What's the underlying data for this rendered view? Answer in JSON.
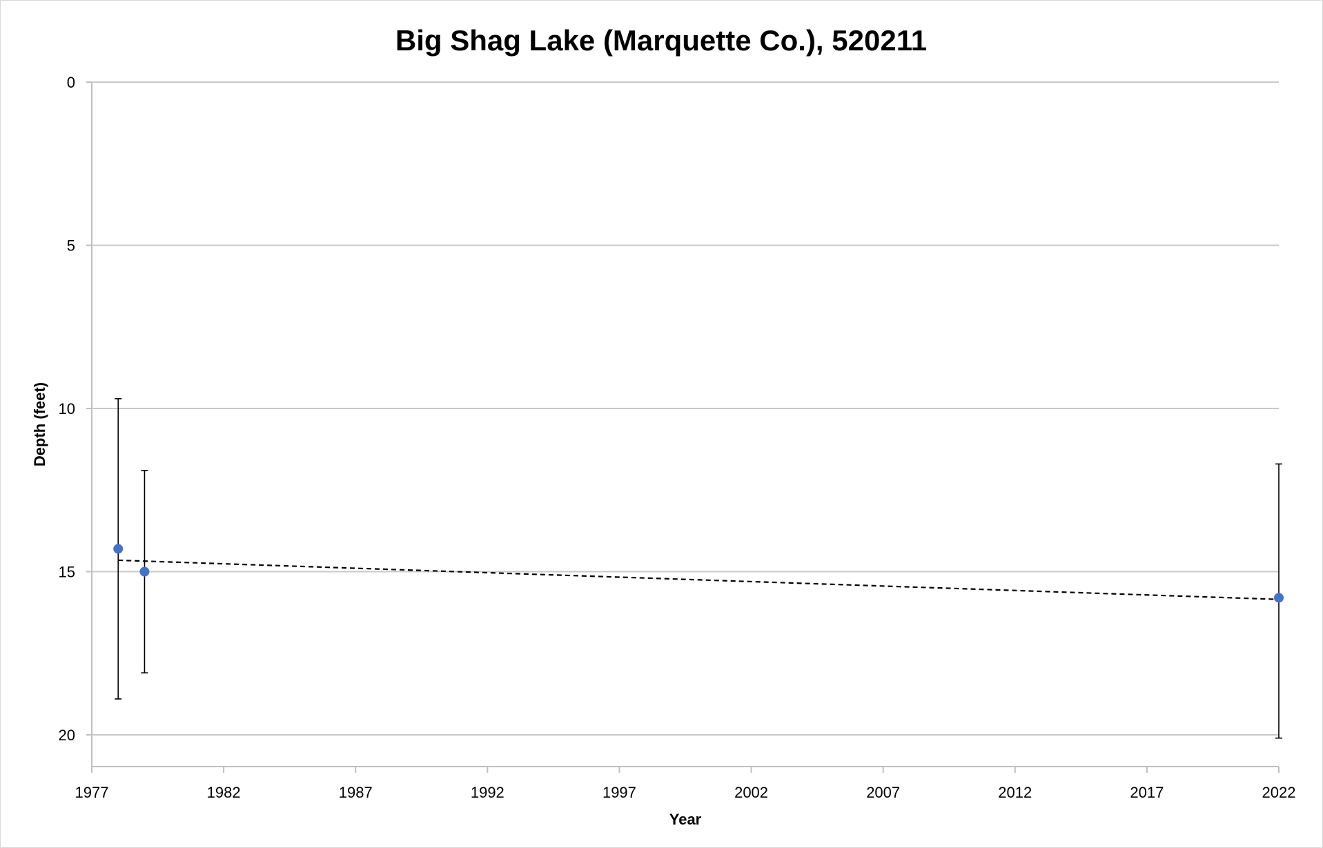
{
  "chart_data": {
    "type": "scatter",
    "title": "Big Shag Lake (Marquette Co.), 520211",
    "xlabel": "Year",
    "ylabel": "Depth (feet)",
    "x_ticks": [
      "1977",
      "1982",
      "1987",
      "1992",
      "1997",
      "2002",
      "2007",
      "2012",
      "2017",
      "2022"
    ],
    "y_ticks": [
      "0",
      "5",
      "10",
      "15",
      "20"
    ],
    "xlim": [
      1977,
      2022
    ],
    "ylim": [
      0,
      21
    ],
    "y_axis_reversed": true,
    "grid": "horizontal major gridlines",
    "legend": "none",
    "series": [
      {
        "color": "#4472c4",
        "points": [
          {
            "x": 1978,
            "y": 14.3,
            "err_low": 9.7,
            "err_high": 18.9
          },
          {
            "x": 1979,
            "y": 15.0,
            "err_low": 11.9,
            "err_high": 18.1
          },
          {
            "x": 2022,
            "y": 15.8,
            "err_low": 11.7,
            "err_high": 20.1
          }
        ]
      }
    ],
    "trendline": {
      "type": "linear",
      "style": "dashed",
      "color": "#000000",
      "x": [
        1978,
        2022
      ],
      "y": [
        14.65,
        15.85
      ]
    }
  }
}
